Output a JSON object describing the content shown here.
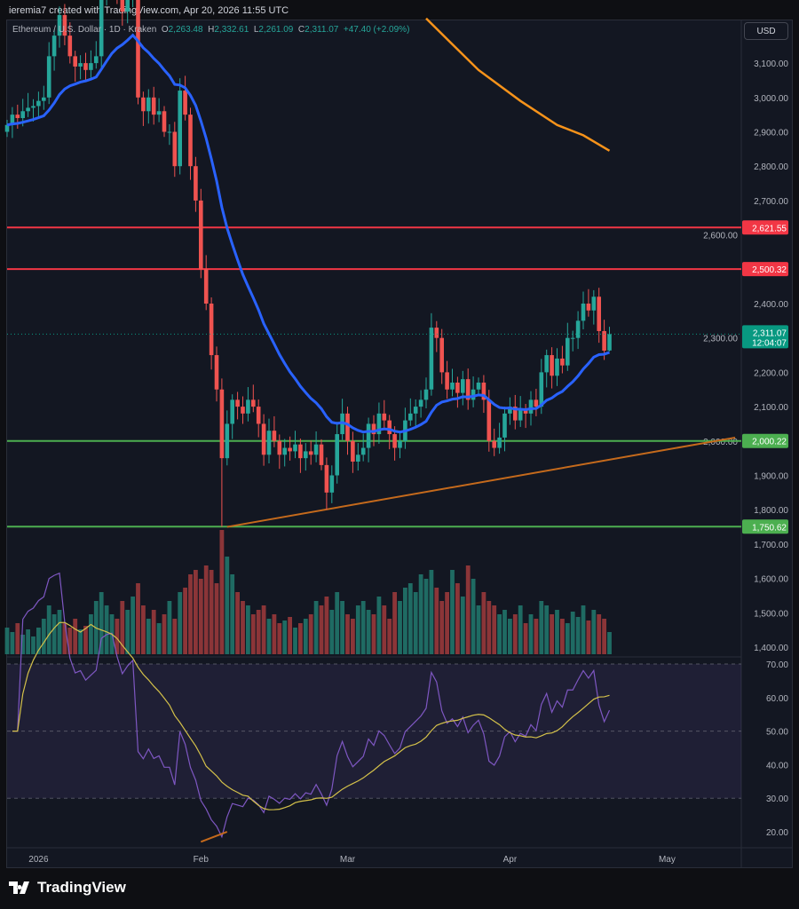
{
  "credit": "ieremia7 created with TradingView.com, Apr 20, 2026 11:55 UTC",
  "legend": {
    "symbol": "Ethereum / U.S. Dollar · 1D · Kraken",
    "o_label": "O",
    "o": "2,263.48",
    "h_label": "H",
    "h": "2,332.61",
    "l_label": "L",
    "l": "2,261.09",
    "c_label": "C",
    "c": "2,311.07",
    "change": "+47.40 (+2.09%)"
  },
  "currency": "USD",
  "price_axis": {
    "ticks": [
      3100,
      3000,
      2900,
      2800,
      2700,
      2600,
      2400,
      2300,
      2200,
      2100,
      2000,
      1900,
      1800,
      1700,
      1600,
      1500,
      1400
    ],
    "tick_labels": [
      "3,100.00",
      "3,000.00",
      "2,900.00",
      "2,800.00",
      "2,700.00",
      "2,600.00",
      "2,400.00",
      "2,300.00",
      "2,200.00",
      "2,100.00",
      "2,000.00",
      "1,900.00",
      "1,800.00",
      "1,700.00",
      "1,600.00",
      "1,500.00",
      "1,400.00"
    ]
  },
  "levels": [
    {
      "price": 2621.55,
      "label": "2,621.55",
      "color": "#f23645"
    },
    {
      "price": 2500.32,
      "label": "2,500.32",
      "color": "#f23645"
    },
    {
      "price": 2000.22,
      "label": "2,000.22",
      "color": "#4caf50"
    },
    {
      "price": 1750.62,
      "label": "1,750.62",
      "color": "#4caf50"
    }
  ],
  "current": {
    "price": 2311.07,
    "label": "2,311.07",
    "countdown": "12:04:07",
    "color": "#089981"
  },
  "colors": {
    "up": "#26a69a",
    "down": "#ef5350",
    "ema": "#2962ff",
    "ma200": "#f7931a",
    "trend": "#c56a1c",
    "rsi": "#7e57c2",
    "rsi_ma": "#d4c14a"
  },
  "time_axis": {
    "labels": [
      {
        "day": 6,
        "text": "2026"
      },
      {
        "day": 37,
        "text": "Feb"
      },
      {
        "day": 65,
        "text": "Mar"
      },
      {
        "day": 96,
        "text": "Apr"
      },
      {
        "day": 126,
        "text": "May"
      }
    ]
  },
  "chart_data": {
    "type": "candlestick",
    "first_date": "2025-12-26",
    "closes": [
      2920,
      2950,
      2940,
      2960,
      2970,
      2975,
      2990,
      3000,
      3120,
      3180,
      3240,
      3180,
      3120,
      3090,
      3100,
      3080,
      3100,
      3120,
      3300,
      3330,
      3340,
      3290,
      3250,
      3290,
      3320,
      3000,
      2960,
      3000,
      2950,
      2960,
      2900,
      2900,
      2800,
      3020,
      2950,
      2800,
      2700,
      2500,
      2400,
      2250,
      2150,
      1950,
      2050,
      2120,
      2100,
      2080,
      2120,
      2100,
      2050,
      1960,
      2030,
      2000,
      1960,
      1980,
      1970,
      1990,
      1950,
      1970,
      1960,
      1990,
      1930,
      1850,
      1900,
      2020,
      2080,
      2000,
      1940,
      1960,
      1980,
      2050,
      2020,
      2080,
      2060,
      2020,
      1980,
      2000,
      2060,
      2080,
      2100,
      2120,
      2150,
      2330,
      2300,
      2200,
      2150,
      2170,
      2140,
      2180,
      2120,
      2150,
      2170,
      2120,
      2000,
      1980,
      2010,
      2080,
      2100,
      2060,
      2090,
      2080,
      2120,
      2100,
      2200,
      2250,
      2190,
      2240,
      2220,
      2300,
      2300,
      2350,
      2400,
      2380,
      2420,
      2320,
      2263,
      2311.07
    ],
    "volumes": [
      30,
      25,
      35,
      22,
      28,
      20,
      30,
      40,
      55,
      45,
      50,
      35,
      30,
      40,
      28,
      32,
      45,
      60,
      70,
      55,
      45,
      40,
      60,
      50,
      65,
      80,
      55,
      40,
      50,
      35,
      45,
      60,
      40,
      70,
      75,
      90,
      95,
      85,
      100,
      95,
      80,
      140,
      110,
      90,
      70,
      60,
      55,
      45,
      50,
      55,
      40,
      45,
      35,
      38,
      42,
      30,
      35,
      40,
      45,
      60,
      55,
      65,
      50,
      70,
      60,
      45,
      40,
      55,
      60,
      50,
      45,
      65,
      55,
      40,
      70,
      60,
      75,
      80,
      70,
      90,
      85,
      95,
      75,
      60,
      70,
      95,
      80,
      65,
      100,
      85,
      55,
      70,
      60,
      55,
      45,
      50,
      40,
      45,
      55,
      35,
      45,
      40,
      60,
      55,
      45,
      50,
      40,
      35,
      48,
      42,
      55,
      38,
      50,
      45,
      40,
      25
    ],
    "ma200": [
      [
        80,
        3230
      ],
      [
        90,
        3080
      ],
      [
        98,
        2990
      ],
      [
        105,
        2920
      ],
      [
        110,
        2890
      ],
      [
        115,
        2845
      ]
    ],
    "trendline": [
      [
        42,
        1750
      ],
      [
        139,
        2010
      ]
    ],
    "rsi_axis": {
      "ticks": [
        70,
        60,
        50,
        40,
        30,
        20
      ],
      "tick_labels": [
        "70.00",
        "60.00",
        "50.00",
        "40.00",
        "30.00",
        "20.00"
      ],
      "band": [
        30,
        70
      ]
    }
  },
  "brand": "TradingView"
}
